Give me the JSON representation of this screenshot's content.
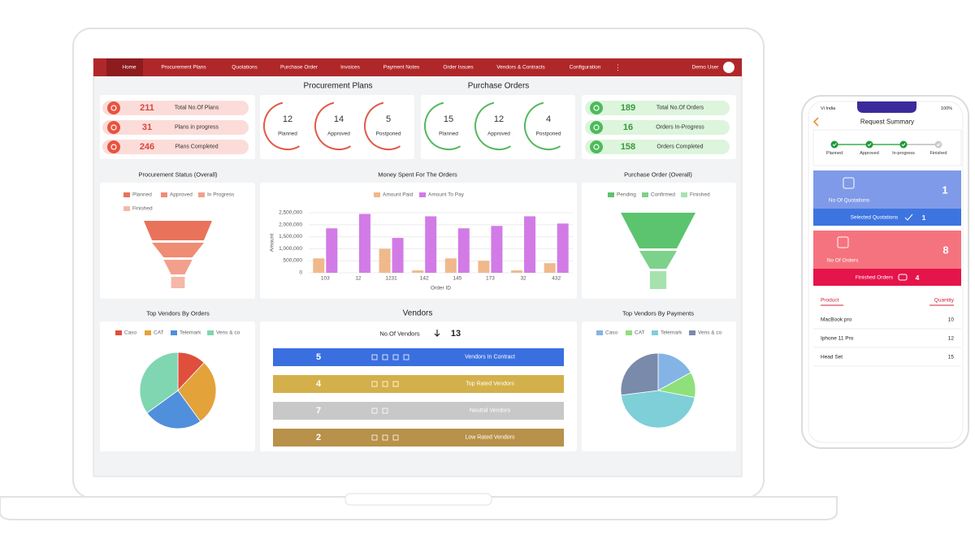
{
  "nav": {
    "items": [
      "Home",
      "Procurement Plans",
      "Quotations",
      "Purchase Order",
      "Invoices",
      "Payment Notes",
      "Order Issues",
      "Vendors & Contracts",
      "Configuration"
    ],
    "user": "Demo User"
  },
  "plans_summary": [
    {
      "value": 211,
      "label": "Total No.Of Plans"
    },
    {
      "value": 31,
      "label": "Plans in progress"
    },
    {
      "value": 246,
      "label": "Plans Completed"
    }
  ],
  "procurement_plans": {
    "title": "Procurement Plans",
    "items": [
      {
        "value": 12,
        "label": "Planned"
      },
      {
        "value": 14,
        "label": "Approved"
      },
      {
        "value": 5,
        "label": "Postponed"
      }
    ]
  },
  "purchase_orders": {
    "title": "Purchase Orders",
    "items": [
      {
        "value": 15,
        "label": "Planned"
      },
      {
        "value": 12,
        "label": "Approved"
      },
      {
        "value": 4,
        "label": "Postponed"
      }
    ]
  },
  "orders_summary": [
    {
      "value": 189,
      "label": "Total No.Of Orders"
    },
    {
      "value": 16,
      "label": "Orders In-Progress"
    },
    {
      "value": 158,
      "label": "Orders Completed"
    }
  ],
  "vendors": {
    "title": "Vendors",
    "count_label": "No.Of Vendors",
    "count": 13,
    "rows": [
      {
        "value": 5,
        "label": "Vendors In Contract"
      },
      {
        "value": 4,
        "label": "Top Rated Vendors"
      },
      {
        "value": 7,
        "label": "Neutral Vendors"
      },
      {
        "value": 2,
        "label": "Low Rated Vendors"
      }
    ]
  },
  "mobile": {
    "carrier": "Vi India",
    "battery": "100%",
    "title": "Request Summary",
    "steps": [
      "Planned",
      "Approved",
      "In-progress",
      "Finished"
    ],
    "cards": [
      {
        "count": 1,
        "label": "No Of Quotations",
        "footer": "Selected Quotations",
        "footer_count": 1
      },
      {
        "count": 8,
        "label": "No Of Orders",
        "footer": "Finished Orders",
        "footer_count": 4
      }
    ],
    "table": {
      "headers": [
        "Product",
        "Quantity"
      ],
      "rows": [
        [
          "MacBook pro",
          10
        ],
        [
          "Iphone 11 Pro",
          12
        ],
        [
          "Head Set",
          15
        ]
      ]
    }
  },
  "chart_data": [
    {
      "type": "funnel",
      "title": "Procurement Status (Overall)",
      "categories": [
        "Planned",
        "Approved",
        "In Progress",
        "Finished"
      ],
      "values": [
        100,
        76,
        42,
        20
      ],
      "colors": [
        "#e8735a",
        "#ef8c74",
        "#f2a08c",
        "#f5b8a8"
      ]
    },
    {
      "type": "bar",
      "title": "Money Spent For The Orders",
      "xlabel": "Order ID",
      "ylabel": "Amount",
      "categories": [
        "103",
        "12",
        "1231",
        "142",
        "145",
        "173",
        "32",
        "432"
      ],
      "series": [
        {
          "name": "Amount Paid",
          "color": "#f0b98c",
          "values": [
            600000,
            0,
            1000000,
            100000,
            600000,
            500000,
            100000,
            400000
          ]
        },
        {
          "name": "Amount To Pay",
          "color": "#d27be6",
          "values": [
            1850000,
            2450000,
            1450000,
            2350000,
            1850000,
            1950000,
            2350000,
            2050000
          ]
        }
      ],
      "ylim": [
        0,
        2500000
      ],
      "yticks": [
        0,
        {
          "value": 500000,
          "label": "500,000"
        },
        {
          "value": 1000000,
          "label": "1,000,000"
        },
        {
          "value": 1500000,
          "label": "1,500,000"
        },
        {
          "value": 2000000,
          "label": "2,000,000"
        },
        {
          "value": 2500000,
          "label": "2,500,000"
        }
      ],
      "grid": true
    },
    {
      "type": "funnel",
      "title": "Purchase Order (Overall)",
      "categories": [
        "Pending",
        "Confirmed",
        "Finished"
      ],
      "values": [
        100,
        50,
        22
      ],
      "colors": [
        "#5cc46e",
        "#7cd28a",
        "#a6e2ae"
      ]
    },
    {
      "type": "pie",
      "title": "Top Vendors By Orders",
      "categories": [
        "Caso",
        "CAT",
        "Telemark",
        "Vens & co"
      ],
      "values": [
        12,
        28,
        25,
        35
      ],
      "colors": [
        "#e04e3c",
        "#e3a23a",
        "#4f8fdc",
        "#7fd6b0"
      ]
    },
    {
      "type": "pie",
      "title": "Top Vendors By Payments",
      "categories": [
        "Caso",
        "CAT",
        "Telemark",
        "Vens & co"
      ],
      "values": [
        17,
        11,
        45,
        27
      ],
      "colors": [
        "#84b4e6",
        "#8fe07a",
        "#7ecfd8",
        "#7a8aab"
      ]
    }
  ]
}
